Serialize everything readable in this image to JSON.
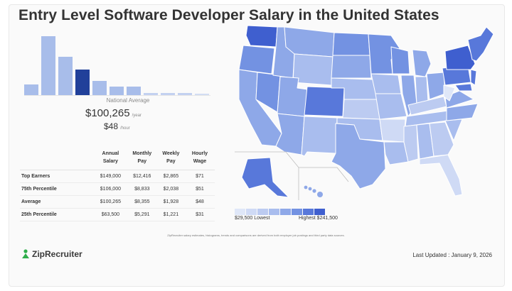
{
  "title": "Entry Level Software Developer Salary in the United States",
  "histogram": {
    "bars": [
      {
        "value": 0.18,
        "color": "#a8bdea"
      },
      {
        "value": 0.97,
        "color": "#a8bdea"
      },
      {
        "value": 0.63,
        "color": "#a8bdea"
      },
      {
        "value": 0.42,
        "color": "#21409a"
      },
      {
        "value": 0.23,
        "color": "#a8bdea"
      },
      {
        "value": 0.14,
        "color": "#a8bdea"
      },
      {
        "value": 0.14,
        "color": "#a8bdea"
      },
      {
        "value": 0.04,
        "color": "#c3d1f0"
      },
      {
        "value": 0.04,
        "color": "#c3d1f0"
      },
      {
        "value": 0.03,
        "color": "#c3d1f0"
      },
      {
        "value": 0.02,
        "color": "#d3ddf3"
      }
    ]
  },
  "national": {
    "label": "National Average",
    "yearly": "$100,265",
    "yearly_unit": "/year",
    "hourly": "$48",
    "hourly_unit": "/hour"
  },
  "table": {
    "headers": [
      "",
      "Annual Salary",
      "Monthly Pay",
      "Weekly Pay",
      "Hourly Wage"
    ],
    "rows": [
      {
        "label": "Top Earners",
        "annual": "$149,000",
        "monthly": "$12,416",
        "weekly": "$2,865",
        "hourly": "$71"
      },
      {
        "label": "75th Percentile",
        "annual": "$106,000",
        "monthly": "$8,833",
        "weekly": "$2,038",
        "hourly": "$51"
      },
      {
        "label": "Average",
        "annual": "$100,265",
        "monthly": "$8,355",
        "weekly": "$1,928",
        "hourly": "$48"
      },
      {
        "label": "25th Percentile",
        "annual": "$63,500",
        "monthly": "$5,291",
        "weekly": "$1,221",
        "hourly": "$31"
      }
    ]
  },
  "legend": {
    "low": "$29,500 Lowest",
    "high": "Highest $241,500",
    "colors": [
      "#dfe7f8",
      "#cfdaf5",
      "#bccbf1",
      "#a9bdee",
      "#8ea8e8",
      "#7392e2",
      "#5878da",
      "#3f5fcf"
    ]
  },
  "footnote": "ZipRecruiter salary estimates, histograms, trends and comparisons are derived from both employer job postings and third party data sources.",
  "brand": {
    "name": "ZipRecruiter",
    "color": "#2fae4b"
  },
  "updated": "Last Updated : January 9, 2026"
}
